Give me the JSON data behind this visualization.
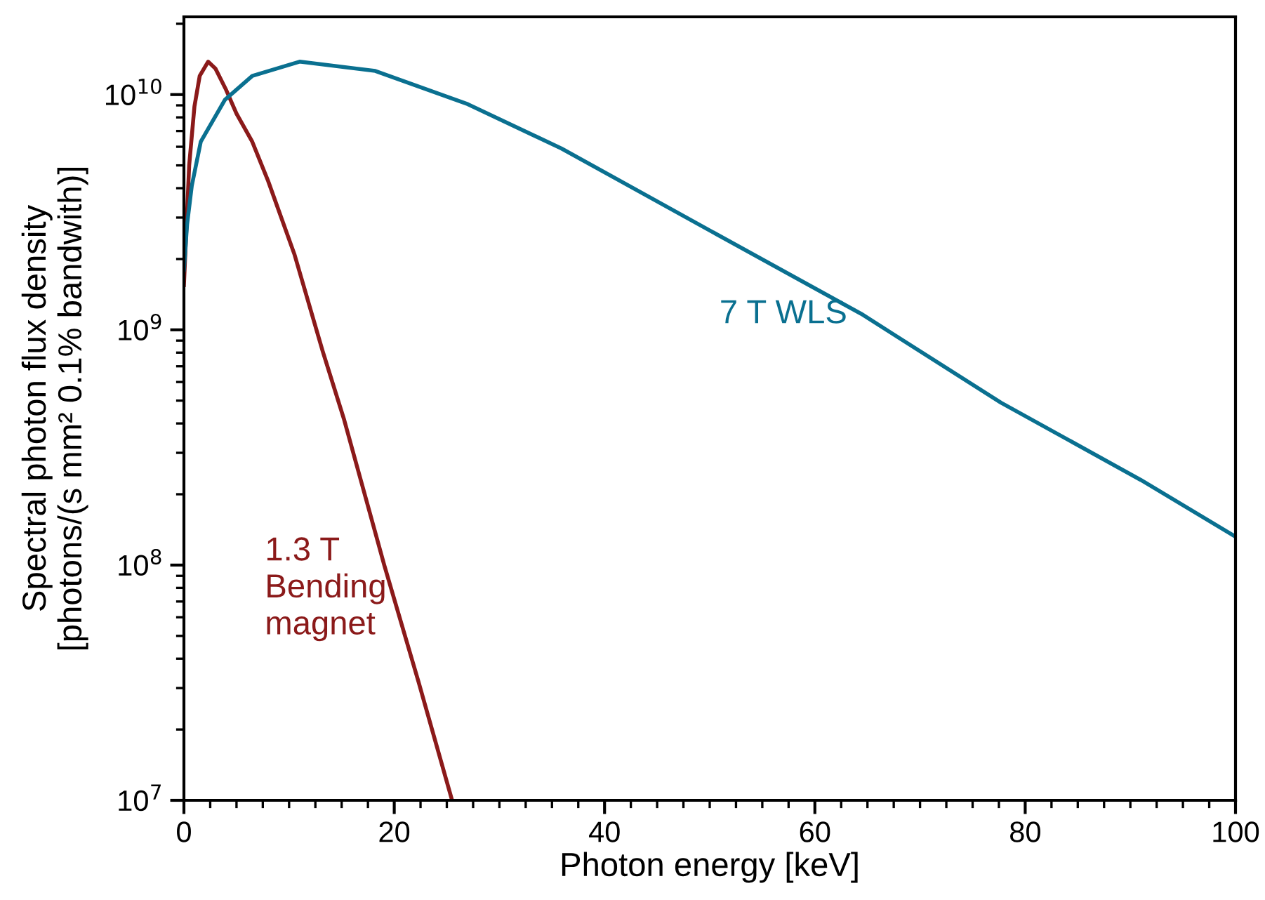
{
  "chart_data": {
    "type": "line",
    "xlabel": "Photon energy [keV]",
    "ylabel": "Spectral photon flux density\n[photons/(s mm² 0.1% bandwith)]",
    "log": "y",
    "xlim": [
      0,
      100
    ],
    "xticks": [
      0,
      20,
      40,
      60,
      80,
      100
    ],
    "ylim": [
      10000000.0,
      21400000000.0
    ],
    "yticks": [
      {
        "value": 10000000.0,
        "label": "10$^{7}$"
      },
      {
        "value": 100000000.0,
        "label": "10$^{8}$"
      },
      {
        "value": 1000000000.0,
        "label": "10$^{9}$"
      },
      {
        "value": 10000000000.0,
        "label": "10$^{10}$"
      }
    ],
    "grid": false,
    "legend": false,
    "marker": "none",
    "line_style": "solid",
    "series": [
      {
        "name": "1.3 T\nBending\nmagnet",
        "color": "#8b1a1a",
        "x": [
          0,
          0.5,
          1,
          1.5,
          2.3,
          3,
          4,
          5,
          6.5,
          8,
          10.5,
          13.2,
          15.2,
          19.05,
          22.3,
          25.5
        ],
        "values": [
          1550000000.0,
          5000000000.0,
          8900000000.0,
          12000000000.0,
          13800000000.0,
          12900000000.0,
          10500000000.0,
          8300000000.0,
          6300000000.0,
          4300000000.0,
          2100000000.0,
          810000000.0,
          420000000.0,
          100000000.0,
          32000000.0,
          10000000.0
        ]
      },
      {
        "name": "7 T WLS",
        "color": "#0a7090",
        "x": [
          0,
          0.3,
          0.75,
          1.6,
          3.9,
          6.5,
          11,
          18.2,
          27,
          35.9,
          51,
          64.4,
          77.7,
          91,
          100
        ],
        "values": [
          1800000000.0,
          2800000000.0,
          4100000000.0,
          6300000000.0,
          9500000000.0,
          12000000000.0,
          13800000000.0,
          12600000000.0,
          9100000000.0,
          5900000000.0,
          2500000000.0,
          1170000000.0,
          490000000.0,
          230000000.0,
          132000000.0
        ]
      }
    ]
  }
}
